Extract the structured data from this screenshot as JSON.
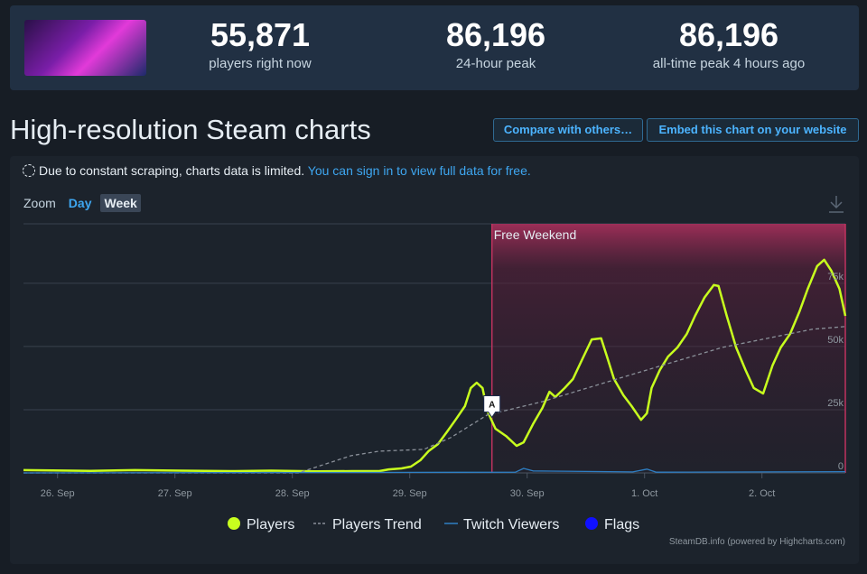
{
  "header": {
    "stats": [
      {
        "value": "55,871",
        "label": "players right now"
      },
      {
        "value": "86,196",
        "label": "24-hour peak"
      },
      {
        "value": "86,196",
        "label": "all-time peak 4 hours ago"
      }
    ]
  },
  "heading": "High-resolution Steam charts",
  "buttons": [
    "Compare with others…",
    "Embed this chart on your website"
  ],
  "notice": {
    "text": "Due to constant scraping, charts data is limited.",
    "link": "You can sign in to view full data for free."
  },
  "zoom": {
    "label": "Zoom",
    "options": [
      "Day",
      "Week"
    ]
  },
  "chart_data": {
    "type": "line",
    "xlim": [
      25.71,
      32.71
    ],
    "ylim": [
      0,
      98500
    ],
    "xticks": [
      {
        "value": 26,
        "label": "26. Sep"
      },
      {
        "value": 27,
        "label": "27. Sep"
      },
      {
        "value": 28,
        "label": "28. Sep"
      },
      {
        "value": 29,
        "label": "29. Sep"
      },
      {
        "value": 30,
        "label": "30. Sep"
      },
      {
        "value": 31,
        "label": "1. Oct"
      },
      {
        "value": 32,
        "label": "2. Oct"
      }
    ],
    "yticks": [
      0,
      {
        "value": 25000,
        "label": "25k"
      },
      {
        "value": 50000,
        "label": "50k"
      },
      {
        "value": 75000,
        "label": "75k"
      }
    ],
    "grid": true,
    "plot_bands": [
      {
        "from": 29.7,
        "to": 32.71,
        "label": "Free Weekend"
      }
    ],
    "series": [
      {
        "name": "Players",
        "color": "#c8ff1e",
        "x": [
          25.71,
          26.28,
          26.66,
          27.05,
          27.51,
          27.82,
          28.2,
          28.51,
          28.74,
          28.82,
          28.93,
          29.01,
          29.09,
          29.16,
          29.24,
          29.32,
          29.39,
          29.47,
          29.52,
          29.57,
          29.62,
          29.66,
          29.73,
          29.82,
          29.91,
          29.97,
          30.05,
          30.13,
          30.19,
          30.24,
          30.32,
          30.39,
          30.47,
          30.55,
          30.63,
          30.68,
          30.74,
          30.82,
          30.89,
          30.97,
          31.02,
          31.06,
          31.13,
          31.2,
          31.28,
          31.36,
          31.43,
          31.51,
          31.59,
          31.63,
          31.7,
          31.78,
          31.86,
          31.93,
          32.01,
          32.09,
          32.16,
          32.24,
          32.32,
          32.39,
          32.47,
          32.53,
          32.59,
          32.66,
          32.71
        ],
        "values": [
          1100,
          800,
          1100,
          900,
          700,
          900,
          600,
          700,
          700,
          1400,
          1800,
          2500,
          5000,
          8600,
          11400,
          16400,
          21000,
          26400,
          33600,
          35700,
          33600,
          24600,
          17500,
          14600,
          10700,
          12100,
          19300,
          25700,
          32100,
          30000,
          33600,
          37100,
          45000,
          52800,
          53200,
          46000,
          37100,
          30700,
          26400,
          21000,
          23600,
          33600,
          40700,
          46000,
          49600,
          55000,
          62100,
          69300,
          74300,
          73900,
          62100,
          49600,
          40700,
          33600,
          31400,
          42500,
          49600,
          55000,
          63900,
          72800,
          81800,
          84300,
          80000,
          72800,
          62100
        ]
      },
      {
        "name": "Players Trend",
        "color": "#8a9099",
        "dash": true,
        "x": [
          25.71,
          28.05,
          28.5,
          28.74,
          29.12,
          29.35,
          29.66,
          30.13,
          30.89,
          31.66,
          32.43,
          32.71
        ],
        "values": [
          0,
          0,
          6800,
          8600,
          9300,
          14000,
          22900,
          28200,
          38900,
          49600,
          56800,
          57900
        ]
      },
      {
        "name": "Twitch Viewers",
        "color": "#2e7fc4",
        "x": [
          25.71,
          29.0,
          29.9,
          29.97,
          30.05,
          30.2,
          30.9,
          31.02,
          31.1,
          32.71
        ],
        "values": [
          0,
          200,
          300,
          1800,
          800,
          700,
          400,
          1500,
          300,
          500
        ]
      },
      {
        "name": "Flags",
        "color": "#1010ff",
        "type": "flags",
        "x": [
          29.7
        ],
        "titles": [
          "A"
        ]
      }
    ],
    "credits": "SteamDB.info (powered by Highcharts.com)"
  }
}
